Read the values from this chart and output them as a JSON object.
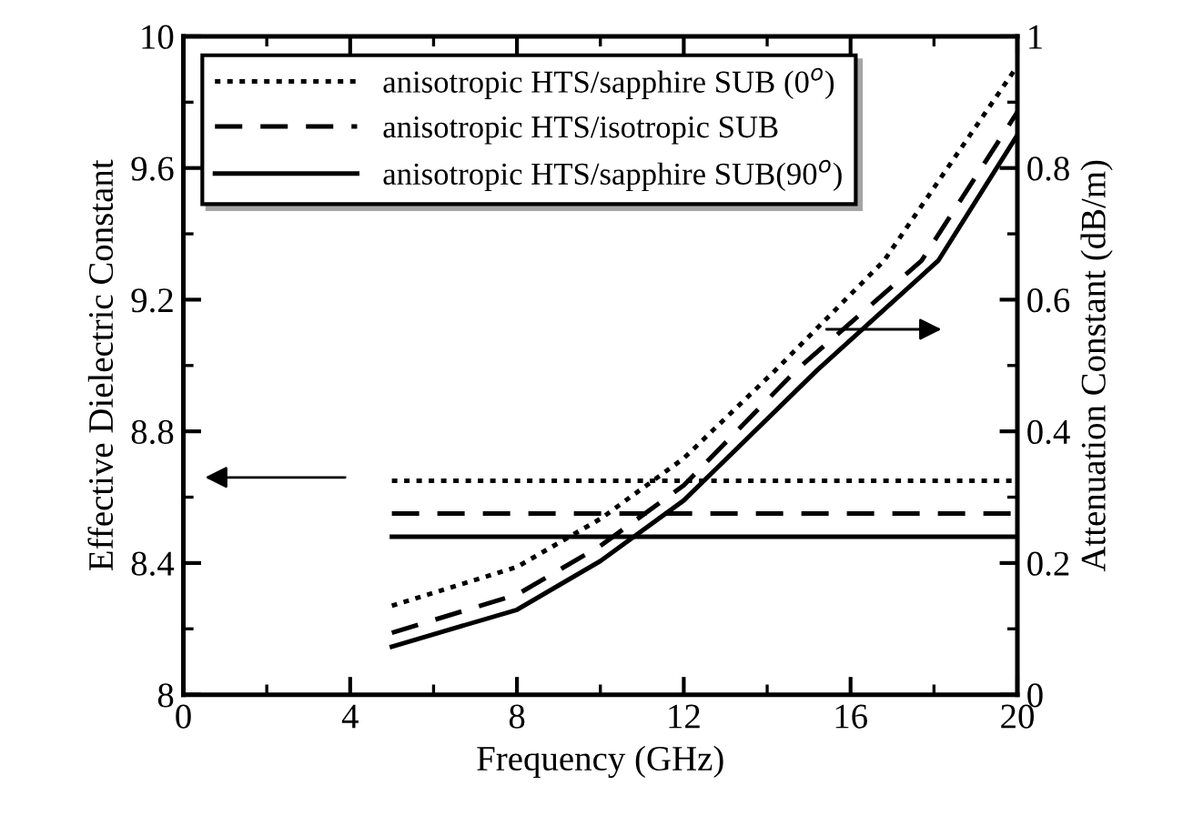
{
  "chart_data": {
    "type": "line",
    "xlabel": "Frequency (GHz)",
    "ylabel": "Effective Dielectric Constant",
    "y2label": "Attenuation Constant (dB/m)",
    "xlim": [
      0,
      20
    ],
    "xticks": [
      0,
      4,
      8,
      12,
      16,
      20
    ],
    "ylim": [
      8,
      10
    ],
    "yticks": [
      8,
      8.4,
      8.8,
      9.2,
      9.6,
      10
    ],
    "y2lim": [
      0,
      1
    ],
    "y2ticks": [
      0,
      0.2,
      0.4,
      0.6,
      0.8,
      1
    ],
    "grid": false,
    "legend": "top left",
    "marker": "none",
    "series": [
      {
        "name": "anisotropic HTS/sapphire SUB (0$^{o}$)",
        "color": "#000000",
        "line_style": "dotted",
        "x": [
          5,
          20
        ],
        "values": [
          8.65,
          8.65
        ]
      },
      {
        "name": "anisotropic HTS/isotropic SUB",
        "color": "#000000",
        "line_style": "dashed",
        "x": [
          5,
          20
        ],
        "values": [
          8.55,
          8.55
        ]
      },
      {
        "name": "anisotropic HTS/sapphire SUB(90$^{o}$)",
        "color": "#000000",
        "line_style": "solid",
        "x": [
          5,
          20
        ],
        "values": [
          8.48,
          8.48
        ]
      },
      {
        "color": "#000000",
        "line_style": "dotted",
        "axis": "y2",
        "x": [
          5,
          8,
          10,
          12,
          14.2,
          16.8,
          20
        ],
        "values": [
          0.135,
          0.194,
          0.267,
          0.359,
          0.493,
          0.659,
          0.955
        ]
      },
      {
        "color": "#000000",
        "line_style": "dashed",
        "axis": "y2",
        "x": [
          5,
          8,
          10,
          12,
          14.7,
          17.7,
          20
        ],
        "values": [
          0.094,
          0.152,
          0.226,
          0.318,
          0.493,
          0.659,
          0.885
        ]
      },
      {
        "color": "#000000",
        "line_style": "solid",
        "axis": "y2",
        "x": [
          5,
          8,
          10,
          12,
          15.2,
          18.1,
          20
        ],
        "values": [
          0.073,
          0.129,
          0.203,
          0.295,
          0.493,
          0.659,
          0.85
        ]
      }
    ]
  }
}
